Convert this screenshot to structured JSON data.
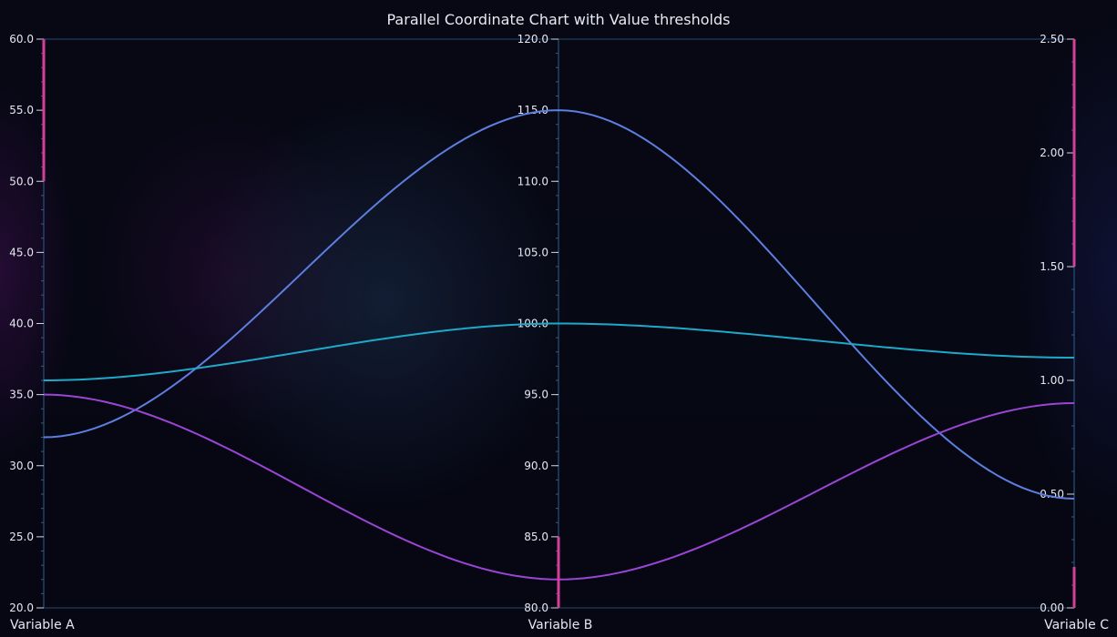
{
  "chart_data": {
    "type": "line",
    "chart_subtype": "parallel-coordinates",
    "title": "Parallel Coordinate Chart with Value thresholds",
    "grid": false,
    "legend": "none",
    "axes": [
      {
        "name": "Variable A",
        "range": [
          20,
          60
        ],
        "ticks": [
          "20.0",
          "25.0",
          "30.0",
          "35.0",
          "40.0",
          "45.0",
          "50.0",
          "55.0",
          "60.0"
        ],
        "tick_values": [
          20,
          25,
          30,
          35,
          40,
          45,
          50,
          55,
          60
        ],
        "threshold": [
          50,
          60
        ]
      },
      {
        "name": "Variable B",
        "range": [
          80,
          120
        ],
        "ticks": [
          "80.0",
          "85.0",
          "90.0",
          "95.0",
          "100.0",
          "105.0",
          "110.0",
          "115.0",
          "120.0"
        ],
        "tick_values": [
          80,
          85,
          90,
          95,
          100,
          105,
          110,
          115,
          120
        ],
        "threshold": [
          80,
          85
        ]
      },
      {
        "name": "Variable C",
        "range": [
          0,
          2.5
        ],
        "ticks": [
          "0.00",
          "0.50",
          "1.00",
          "1.50",
          "2.00",
          "2.50"
        ],
        "tick_values": [
          0,
          0.5,
          1,
          1.5,
          2,
          2.5
        ],
        "threshold_ranges": [
          [
            0,
            0.18
          ],
          [
            1.5,
            2.5
          ]
        ]
      }
    ],
    "series": [
      {
        "color": "#5d7fe0",
        "values": [
          32,
          115,
          0.48
        ]
      },
      {
        "color": "#1fa9c9",
        "values": [
          36,
          100,
          1.1
        ]
      },
      {
        "color": "#9b45d6",
        "values": [
          35,
          82,
          0.9
        ]
      }
    ],
    "colors": {
      "axis_line": "#2e5f8a",
      "threshold": "#d43f9a",
      "border": "#24486e"
    }
  }
}
